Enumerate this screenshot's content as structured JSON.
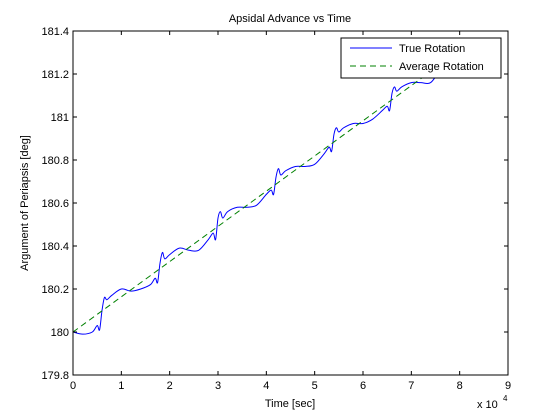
{
  "chart_data": {
    "type": "line",
    "title": "Apsidal Advance vs Time",
    "xlabel": "Time [sec]",
    "ylabel": "Argument of Periapsis [deg]",
    "x_exponent_label": "x 10",
    "x_exponent_power": "4",
    "x_scale_multiplier": 10000,
    "xlim": [
      0,
      9
    ],
    "ylim": [
      179.8,
      181.4
    ],
    "xticks": [
      0,
      1,
      2,
      3,
      4,
      5,
      6,
      7,
      8,
      9
    ],
    "xtick_labels": [
      "0",
      "1",
      "2",
      "3",
      "4",
      "5",
      "6",
      "7",
      "8",
      "9"
    ],
    "yticks": [
      179.8,
      180,
      180.2,
      180.4,
      180.6,
      180.8,
      181,
      181.2,
      181.4
    ],
    "ytick_labels": [
      "179.8",
      "180",
      "180.2",
      "180.4",
      "180.6",
      "180.8",
      "181",
      "181.2",
      "181.4"
    ],
    "grid": false,
    "legend_position": "top-right",
    "series": [
      {
        "name": "True Rotation",
        "color": "#0000ff",
        "style": "solid",
        "x": [
          0,
          0.2,
          0.4,
          0.5,
          0.55,
          0.6,
          0.65,
          0.7,
          0.8,
          1.0,
          1.2,
          1.4,
          1.6,
          1.7,
          1.75,
          1.8,
          1.85,
          1.9,
          2.0,
          2.2,
          2.4,
          2.6,
          2.8,
          2.9,
          2.95,
          3.0,
          3.05,
          3.1,
          3.2,
          3.4,
          3.6,
          3.8,
          4.0,
          4.1,
          4.15,
          4.2,
          4.25,
          4.3,
          4.4,
          4.6,
          4.8,
          5.0,
          5.2,
          5.3,
          5.35,
          5.4,
          5.45,
          5.5,
          5.6,
          5.8,
          6.0,
          6.2,
          6.4,
          6.5,
          6.55,
          6.6,
          6.65,
          6.7,
          6.8,
          7.0,
          7.2,
          7.4,
          7.6,
          7.7,
          7.75,
          7.8,
          7.85,
          7.9,
          8.0
        ],
        "y": [
          180.0,
          179.99,
          180.0,
          180.03,
          180.01,
          180.1,
          180.16,
          180.15,
          180.17,
          180.2,
          180.19,
          180.2,
          180.22,
          180.25,
          180.23,
          180.32,
          180.37,
          180.34,
          180.36,
          180.39,
          180.38,
          180.38,
          180.43,
          180.46,
          180.43,
          180.53,
          180.56,
          180.53,
          180.56,
          180.58,
          180.58,
          180.59,
          180.64,
          180.66,
          180.64,
          180.72,
          180.76,
          180.73,
          180.75,
          180.77,
          180.77,
          180.78,
          180.83,
          180.86,
          180.84,
          180.92,
          180.95,
          180.93,
          180.95,
          180.97,
          180.97,
          180.99,
          181.03,
          181.05,
          181.03,
          181.11,
          181.14,
          181.12,
          181.14,
          181.16,
          181.16,
          181.16,
          181.22,
          181.24,
          181.22,
          181.29,
          181.33,
          181.3,
          181.31
        ]
      },
      {
        "name": "Average Rotation",
        "color": "#008000",
        "style": "dashed",
        "x": [
          0,
          8.0
        ],
        "y": [
          180.0,
          181.31
        ]
      }
    ]
  }
}
